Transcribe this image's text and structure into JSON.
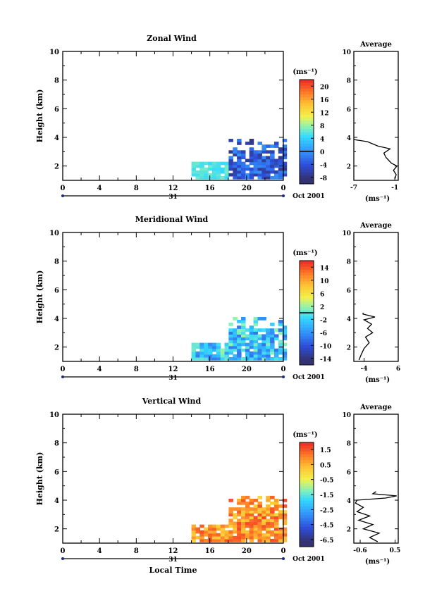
{
  "figure": {
    "bottom_xlabel": "Local Time",
    "month_label": "Oct 2001",
    "day_label": "31",
    "average_title": "Average"
  },
  "chart_data": [
    {
      "type": "heatmap",
      "title": "Zonal Wind",
      "ylabel": "Height (km)",
      "xlabel": "",
      "x_ticks": [
        "0",
        "4",
        "8",
        "12",
        "16",
        "20",
        "0"
      ],
      "xlim": [
        0,
        24
      ],
      "y_ticks": [
        "2",
        "4",
        "6",
        "8",
        "10"
      ],
      "ylim": [
        1,
        10
      ],
      "colorbar": {
        "unit": "(ms⁻¹)",
        "ticks": [
          "-8",
          "-4",
          "0",
          "4",
          "8",
          "12",
          "16",
          "20"
        ],
        "range": [
          -10,
          22
        ],
        "zero_line": 0
      },
      "data_extent": {
        "x": [
          14,
          24
        ],
        "y": [
          1.1,
          3.8
        ]
      },
      "average_profile": {
        "x_ticks": [
          "-7",
          "-1"
        ],
        "xlim": [
          -7,
          -0.5
        ],
        "y_ticks": [
          "2",
          "4",
          "6",
          "8",
          "10"
        ],
        "xlabel": "(ms⁻¹)",
        "points": [
          [
            -1.0,
            1.1
          ],
          [
            -0.8,
            1.4
          ],
          [
            -1.2,
            1.7
          ],
          [
            -0.7,
            2.0
          ],
          [
            -1.5,
            2.2
          ],
          [
            -2.3,
            2.6
          ],
          [
            -2.6,
            2.9
          ],
          [
            -1.7,
            3.2
          ],
          [
            -3.5,
            3.4
          ],
          [
            -5.0,
            3.7
          ],
          [
            -7.0,
            3.85
          ]
        ]
      }
    },
    {
      "type": "heatmap",
      "title": "Meridional Wind",
      "ylabel": "Height (km)",
      "xlabel": "",
      "x_ticks": [
        "0",
        "4",
        "8",
        "12",
        "16",
        "20",
        "0"
      ],
      "xlim": [
        0,
        24
      ],
      "y_ticks": [
        "2",
        "4",
        "6",
        "8",
        "10"
      ],
      "ylim": [
        1,
        10
      ],
      "colorbar": {
        "unit": "(ms⁻¹)",
        "ticks": [
          "-14",
          "-10",
          "-6",
          "-2",
          "2",
          "6",
          "10",
          "14"
        ],
        "range": [
          -16,
          16
        ],
        "zero_line": 0
      },
      "data_extent": {
        "x": [
          14,
          24
        ],
        "y": [
          1.1,
          4.0
        ]
      },
      "average_profile": {
        "x_ticks": [
          "-4",
          "6"
        ],
        "xlim": [
          -7,
          6
        ],
        "y_ticks": [
          "2",
          "4",
          "6",
          "8",
          "10"
        ],
        "xlabel": "(ms⁻¹)",
        "points": [
          [
            -5.5,
            1.1
          ],
          [
            -4.8,
            1.5
          ],
          [
            -4.0,
            1.9
          ],
          [
            -2.5,
            2.3
          ],
          [
            -3.6,
            2.7
          ],
          [
            -1.5,
            3.0
          ],
          [
            -3.0,
            3.3
          ],
          [
            -1.8,
            3.6
          ],
          [
            -4.0,
            3.9
          ],
          [
            -0.8,
            4.1
          ],
          [
            -4.3,
            4.3
          ],
          [
            -4.3,
            4.4
          ]
        ]
      }
    },
    {
      "type": "heatmap",
      "title": "Vertical Wind",
      "ylabel": "Height (km)",
      "xlabel": "Local Time",
      "x_ticks": [
        "0",
        "4",
        "8",
        "12",
        "16",
        "20",
        "0"
      ],
      "xlim": [
        0,
        24
      ],
      "y_ticks": [
        "2",
        "4",
        "6",
        "8",
        "10"
      ],
      "ylim": [
        1,
        10
      ],
      "colorbar": {
        "unit": "(ms⁻¹)",
        "ticks": [
          "-6.5",
          "-4.5",
          "-2.5",
          "-1.5",
          "-0.5",
          "0.5",
          "1.5"
        ],
        "range": [
          -7.0,
          2.0
        ],
        "zero_line": null
      },
      "data_extent": {
        "x": [
          14,
          24
        ],
        "y": [
          1.1,
          4.2
        ]
      },
      "average_profile": {
        "x_ticks": [
          "-0.6",
          "0.5"
        ],
        "xlim": [
          -0.8,
          0.6
        ],
        "y_ticks": [
          "2",
          "4",
          "6",
          "8",
          "10"
        ],
        "xlabel": "(ms⁻¹)",
        "points": [
          [
            -0.05,
            1.1
          ],
          [
            -0.3,
            1.4
          ],
          [
            0.0,
            1.7
          ],
          [
            -0.5,
            2.0
          ],
          [
            -0.2,
            2.3
          ],
          [
            -0.65,
            2.6
          ],
          [
            -0.3,
            2.9
          ],
          [
            -0.7,
            3.2
          ],
          [
            -0.5,
            3.5
          ],
          [
            -0.75,
            3.8
          ],
          [
            -0.7,
            4.0
          ],
          [
            0.2,
            4.15
          ],
          [
            0.55,
            4.3
          ],
          [
            -0.2,
            4.45
          ],
          [
            -0.1,
            4.6
          ]
        ]
      }
    }
  ]
}
